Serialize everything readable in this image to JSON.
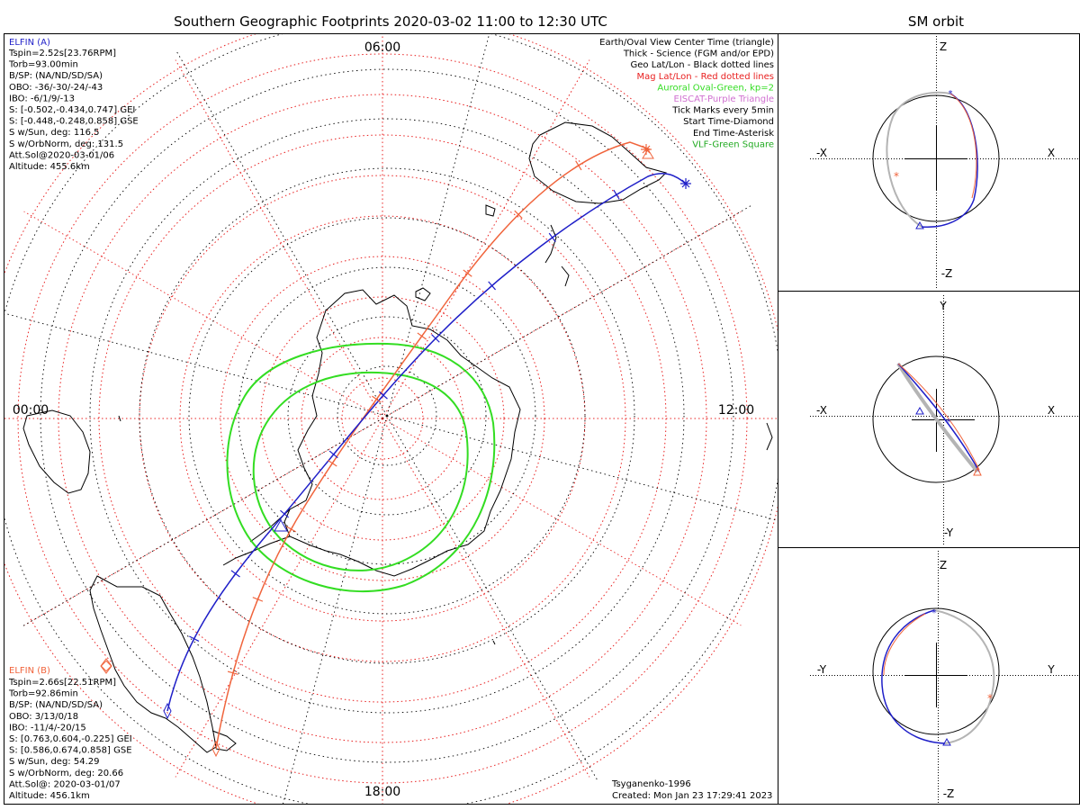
{
  "title": "Southern Geographic Footprints 2020-03-02 11:00 to 12:30 UTC",
  "orbit_panel_title": "SM orbit",
  "colors": {
    "elfin_a": "#1f1fc8",
    "elfin_b": "#f0643c",
    "geo_grid": "#000000",
    "mag_grid": "#e82020",
    "auroral": "#33dd22",
    "eiscat": "#d070d0",
    "vlf": "#22aa22",
    "gray_orbit": "#b4b4b4"
  },
  "map": {
    "time_labels": {
      "top": "06:00",
      "right": "12:00",
      "bottom": "18:00",
      "left": "00:00"
    }
  },
  "elfin_a": {
    "heading": "ELFIN (A)",
    "lines": [
      "Tspin=2.52s[23.76RPM]",
      "Torb=93.00min",
      "B/SP: (NA/ND/SD/SA)",
      "OBO: -36/-30/-24/-43",
      "IBO: -6/1/9/-13",
      "S: [-0.502,-0.434,0.747] GEI",
      "S: [-0.448,-0.248,0.858] GSE",
      "S w/Sun, deg: 116.5",
      "S w/OrbNorm, deg: 131.5",
      "Att.Sol@2020-03-01/06",
      "Altitude: 455.6km"
    ]
  },
  "elfin_b": {
    "heading": "ELFIN (B)",
    "lines": [
      "Tspin=2.66s[22.51RPM]",
      "Torb=92.86min",
      "B/SP: (NA/ND/SD/SA)",
      "OBO: 3/13/0/18",
      "IBO: -11/4/-20/15",
      "S: [0.763,0.604,-0.225] GEI",
      "S: [0.586,0.674,0.858] GSE",
      "S w/Sun, deg: 54.29",
      "S w/OrbNorm, deg: 20.66",
      "Att.Sol@: 2020-03-01/07",
      "Altitude: 456.1km"
    ]
  },
  "legend": [
    {
      "text": "Earth/Oval View Center Time (triangle)",
      "color": "#000000"
    },
    {
      "text": "Thick - Science (FGM and/or EPD)",
      "color": "#000000"
    },
    {
      "text": "Geo Lat/Lon - Black dotted lines",
      "color": "#000000"
    },
    {
      "text": "Mag Lat/Lon - Red dotted lines",
      "color": "#e82020"
    },
    {
      "text": "Auroral Oval-Green, kp=2",
      "color": "#33dd22"
    },
    {
      "text": "EISCAT-Purple Triangle",
      "color": "#d070d0"
    },
    {
      "text": "Tick Marks every 5min",
      "color": "#000000"
    },
    {
      "text": "Start Time-Diamond",
      "color": "#000000"
    },
    {
      "text": "End Time-Asterisk",
      "color": "#000000"
    },
    {
      "text": "VLF-Green Square",
      "color": "#22aa22"
    }
  ],
  "footer": {
    "model": "Tsyganenko-1996",
    "created": "Created: Mon Jan 23 17:29:41 2023"
  },
  "orbit_panels": [
    {
      "top": "Z",
      "bottom": "-Z",
      "left": "-X",
      "right": "X"
    },
    {
      "top": "Y",
      "bottom": "-Y",
      "left": "-X",
      "right": "X"
    },
    {
      "top": "Z",
      "bottom": "-Z",
      "left": "-Y",
      "right": "Y"
    }
  ]
}
